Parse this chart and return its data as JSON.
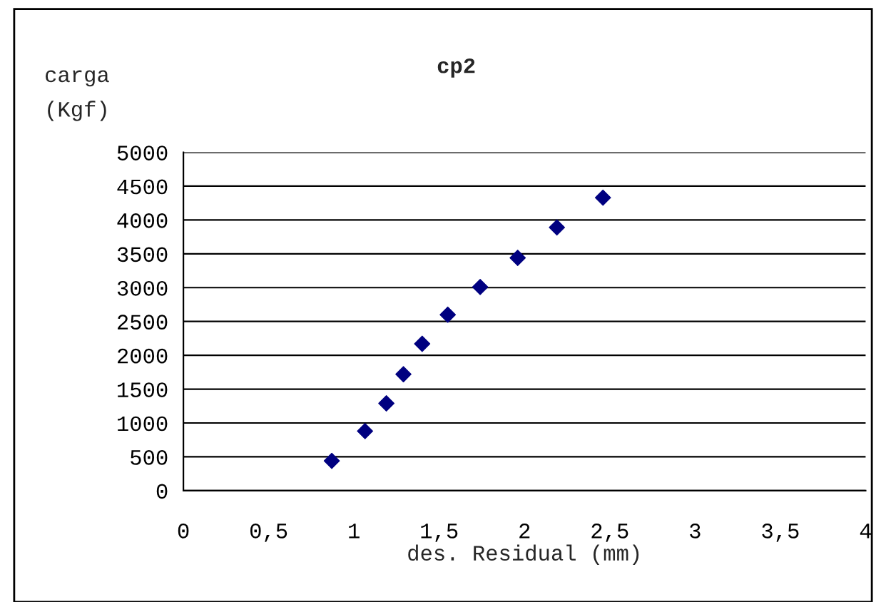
{
  "chart_data": {
    "type": "scatter",
    "title": "cp2",
    "xlabel": "des. Residual (mm)",
    "ylabel": "carga\n(Kgf)",
    "x": [
      0.87,
      1.065,
      1.19,
      1.29,
      1.4,
      1.55,
      1.74,
      1.96,
      2.19,
      2.46
    ],
    "series": [
      {
        "color": "#000080",
        "values": [
          440,
          880,
          1290,
          1720,
          2170,
          2600,
          3010,
          3440,
          3890,
          4330
        ]
      }
    ],
    "marker": "diamond",
    "grid": "y",
    "xlim": [
      0,
      4
    ],
    "xticks": [
      0,
      {
        "value": 0.5,
        "label": "0,5"
      },
      1,
      {
        "value": 1.5,
        "label": "1,5"
      },
      2,
      {
        "value": 2.5,
        "label": "2,5"
      },
      3,
      {
        "value": 3.5,
        "label": "3,5"
      },
      4
    ],
    "ylim": [
      0,
      5000
    ],
    "yticks": [
      0,
      500,
      1000,
      1500,
      2000,
      2500,
      3000,
      3500,
      4000,
      4500,
      5000
    ]
  }
}
